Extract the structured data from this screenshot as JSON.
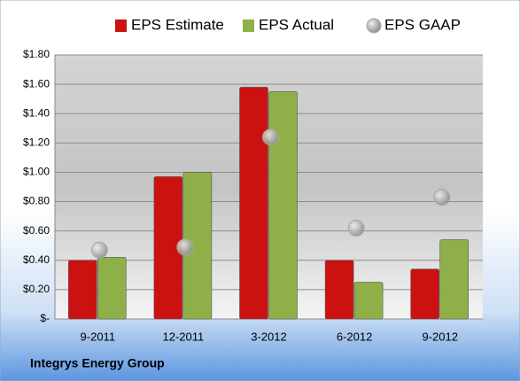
{
  "chart_data": {
    "type": "bar",
    "title": "Integrys Energy Group",
    "categories": [
      "9-2011",
      "12-2011",
      "3-2012",
      "6-2012",
      "9-2012"
    ],
    "series": [
      {
        "name": "EPS Estimate",
        "color": "#cc1111",
        "kind": "bar",
        "values": [
          0.4,
          0.97,
          1.58,
          0.4,
          0.34
        ]
      },
      {
        "name": "EPS Actual",
        "color": "#8faf48",
        "kind": "bar",
        "values": [
          0.42,
          1.0,
          1.55,
          0.25,
          0.54
        ]
      },
      {
        "name": "EPS GAAP",
        "color": "#a8a8a8",
        "kind": "marker",
        "values": [
          0.47,
          0.49,
          1.24,
          0.62,
          0.83
        ]
      }
    ],
    "ylim": [
      0,
      1.8
    ],
    "yticks": [
      {
        "value": 0,
        "label": "$-"
      },
      {
        "value": 0.2,
        "label": "$0.20"
      },
      {
        "value": 0.4,
        "label": "$0.40"
      },
      {
        "value": 0.6,
        "label": "$0.60"
      },
      {
        "value": 0.8,
        "label": "$0.80"
      },
      {
        "value": 1.0,
        "label": "$1.00"
      },
      {
        "value": 1.2,
        "label": "$1.20"
      },
      {
        "value": 1.4,
        "label": "$1.40"
      },
      {
        "value": 1.6,
        "label": "$1.60"
      },
      {
        "value": 1.8,
        "label": "$1.80"
      }
    ],
    "grid": true
  }
}
